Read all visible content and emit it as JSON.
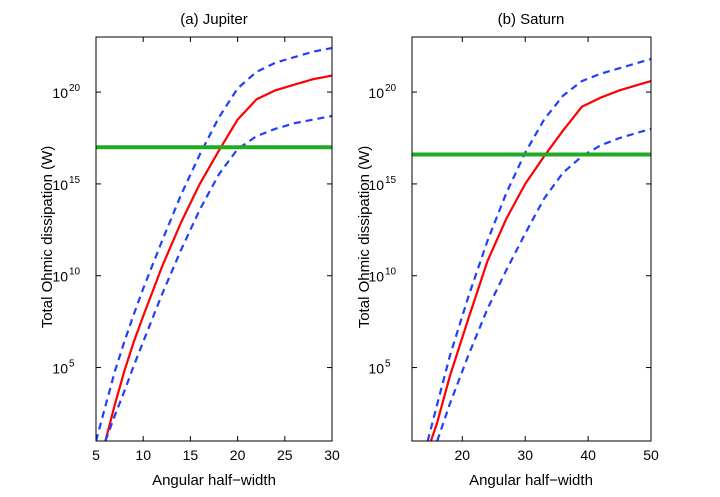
{
  "chart_data": [
    {
      "type": "line",
      "title": "(a) Jupiter",
      "xlabel": "Angular half−width",
      "ylabel": "Total Ohmic dissipation (W)",
      "yscale": "log",
      "xlim": [
        5,
        30
      ],
      "ylim_log10": [
        1,
        23
      ],
      "xticks": [
        5,
        10,
        15,
        20,
        25,
        30
      ],
      "xtick_labels": [
        "5",
        "10",
        "15",
        "20",
        "25",
        "30"
      ],
      "yticks_exp": [
        5,
        10,
        15,
        20
      ],
      "ytick_base": "10",
      "ytick_exps": [
        "5",
        "10",
        "15",
        "20"
      ],
      "series": [
        {
          "name": "upper",
          "style": "dashed",
          "color": "#1f3fff",
          "x": [
            5,
            6,
            7,
            8,
            9,
            10,
            12,
            14,
            16,
            18,
            20,
            22,
            24,
            26,
            28,
            30
          ],
          "log10y": [
            1.0,
            2.9,
            4.8,
            6.4,
            7.9,
            9.3,
            11.9,
            14.4,
            16.6,
            18.6,
            20.2,
            21.1,
            21.6,
            21.9,
            22.2,
            22.4
          ]
        },
        {
          "name": "middle",
          "style": "solid",
          "color": "#ff0000",
          "x": [
            6,
            7,
            8,
            9,
            10,
            12,
            14,
            16,
            18,
            20,
            22,
            24,
            26,
            28,
            30
          ],
          "log10y": [
            1.0,
            3.0,
            4.8,
            6.4,
            7.8,
            10.5,
            12.9,
            15.0,
            16.8,
            18.5,
            19.6,
            20.1,
            20.4,
            20.7,
            20.9
          ]
        },
        {
          "name": "lower",
          "style": "dashed",
          "color": "#1f3fff",
          "x": [
            6,
            7,
            8,
            9,
            10,
            12,
            14,
            16,
            18,
            20,
            22,
            24,
            26,
            28,
            30
          ],
          "log10y": [
            1.0,
            2.4,
            3.7,
            5.1,
            6.4,
            9.0,
            11.4,
            13.6,
            15.5,
            16.9,
            17.6,
            18.0,
            18.3,
            18.5,
            18.7
          ]
        },
        {
          "name": "threshold",
          "style": "solid-thick",
          "color": "#22aa22",
          "x": [
            5,
            30
          ],
          "log10y": [
            17.0,
            17.0
          ]
        }
      ]
    },
    {
      "type": "line",
      "title": "(b) Saturn",
      "xlabel": "Angular half−width",
      "ylabel": "Total Ohmic dissipation (W)",
      "yscale": "log",
      "xlim": [
        12,
        50
      ],
      "ylim_log10": [
        1,
        23
      ],
      "xticks": [
        20,
        30,
        40,
        50
      ],
      "xtick_labels": [
        "20",
        "30",
        "40",
        "50"
      ],
      "yticks_exp": [
        5,
        10,
        15,
        20
      ],
      "ytick_base": "10",
      "ytick_exps": [
        "5",
        "10",
        "15",
        "20"
      ],
      "series": [
        {
          "name": "upper",
          "style": "dashed",
          "color": "#1f3fff",
          "x": [
            14.5,
            16,
            18,
            21,
            24,
            27,
            30,
            33,
            36,
            39,
            42,
            45,
            48,
            50
          ],
          "log10y": [
            1.0,
            3.0,
            5.6,
            8.9,
            11.9,
            14.5,
            16.7,
            18.5,
            19.8,
            20.6,
            21.0,
            21.3,
            21.6,
            21.8
          ]
        },
        {
          "name": "middle",
          "style": "solid",
          "color": "#ff0000",
          "x": [
            15,
            16,
            18,
            21,
            24,
            27,
            30,
            33,
            36,
            39,
            42,
            45,
            48,
            50
          ],
          "log10y": [
            1.0,
            2.0,
            4.5,
            7.7,
            10.8,
            13.1,
            15.0,
            16.5,
            17.9,
            19.2,
            19.7,
            20.1,
            20.4,
            20.6
          ]
        },
        {
          "name": "lower",
          "style": "dashed",
          "color": "#1f3fff",
          "x": [
            16,
            18,
            21,
            24,
            27,
            30,
            33,
            36,
            39,
            42,
            45,
            48,
            50
          ],
          "log10y": [
            1.0,
            3.0,
            5.7,
            8.2,
            10.3,
            12.3,
            14.2,
            15.6,
            16.5,
            17.1,
            17.5,
            17.8,
            18.0
          ]
        },
        {
          "name": "threshold",
          "style": "solid-thick",
          "color": "#22aa22",
          "x": [
            12,
            50
          ],
          "log10y": [
            16.6,
            16.6
          ]
        }
      ]
    }
  ]
}
